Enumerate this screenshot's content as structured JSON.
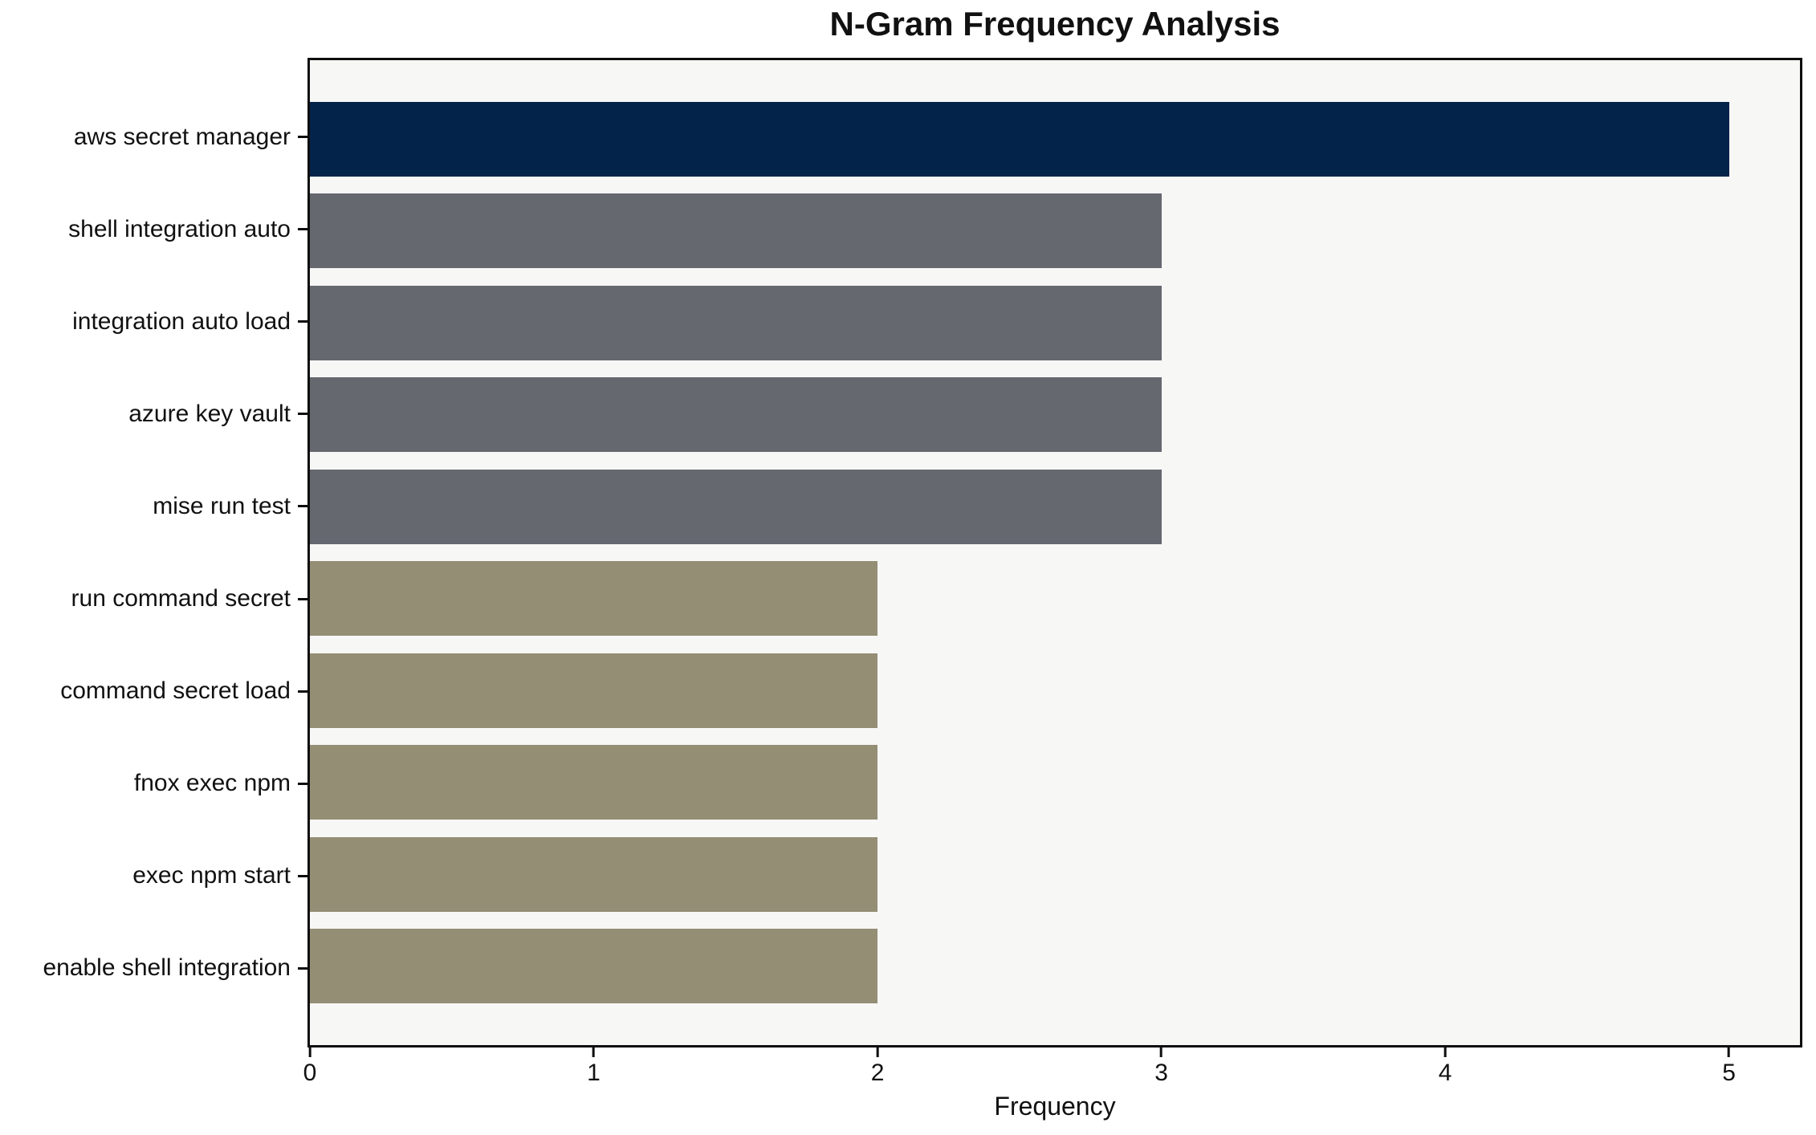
{
  "chart_data": {
    "type": "bar",
    "orientation": "horizontal",
    "title": "N-Gram Frequency Analysis",
    "xlabel": "Frequency",
    "ylabel": "",
    "categories": [
      "aws secret manager",
      "shell integration auto",
      "integration auto load",
      "azure key vault",
      "mise run test",
      "run command secret",
      "command secret load",
      "fnox exec npm",
      "exec npm start",
      "enable shell integration"
    ],
    "values": [
      5,
      3,
      3,
      3,
      3,
      2,
      2,
      2,
      2,
      2
    ],
    "x_ticks": [
      0,
      1,
      2,
      3,
      4,
      5
    ],
    "xlim": [
      0,
      5.25
    ],
    "grid": false,
    "legend": "none",
    "bar_colors": [
      "#03234A",
      "#65686F",
      "#65686F",
      "#65686F",
      "#65686F",
      "#948E75",
      "#948E75",
      "#948E75",
      "#948E75",
      "#948E75"
    ],
    "colors": {
      "highlight": "#03234A",
      "mid_gray": "#65686F",
      "low_olive": "#948E75",
      "plot_background": "#F7F7F6",
      "figure_background": "#FFFFFF",
      "axis": "#0E0E0E",
      "text": "#111111"
    }
  }
}
